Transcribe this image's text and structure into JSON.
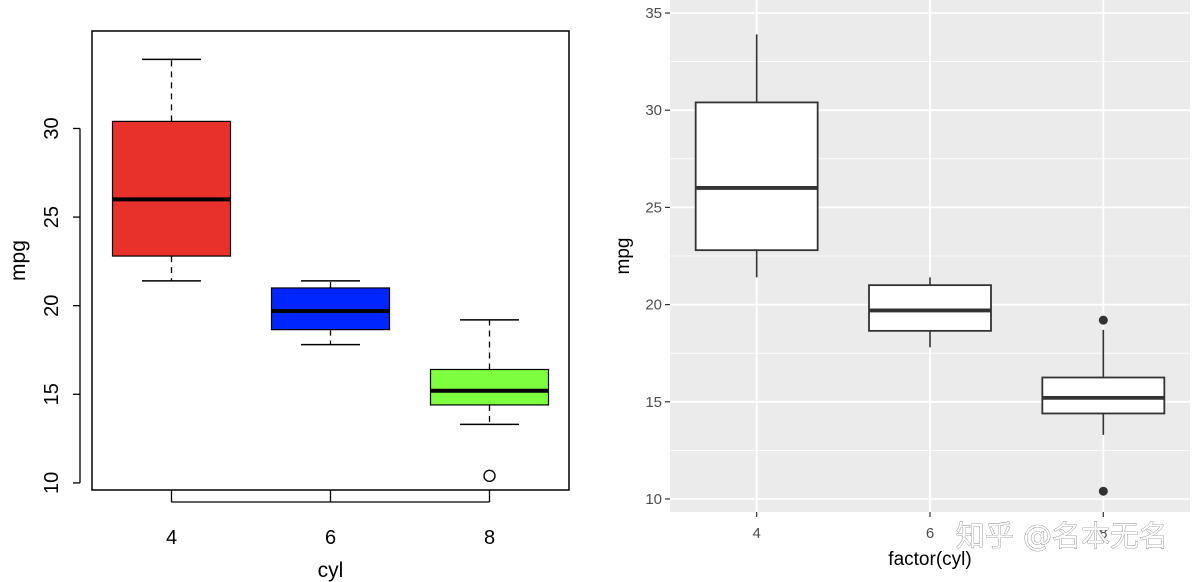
{
  "chart_data": [
    {
      "type": "box",
      "style": "base-r",
      "title": "",
      "xlabel": "cyl",
      "ylabel": "mpg",
      "ylim": [
        9.6,
        35.5
      ],
      "yticks": [
        10,
        15,
        20,
        25,
        30
      ],
      "categories": [
        "4",
        "6",
        "8"
      ],
      "boxes": [
        {
          "category": "4",
          "min": 21.4,
          "q1": 22.8,
          "median": 26.0,
          "q3": 30.4,
          "max": 33.9,
          "outliers": [],
          "color": "#e8312a"
        },
        {
          "category": "6",
          "min": 17.8,
          "q1": 18.65,
          "median": 19.7,
          "q3": 21.0,
          "max": 21.4,
          "outliers": [],
          "color": "#0026ff"
        },
        {
          "category": "8",
          "min": 13.3,
          "q1": 14.4,
          "median": 15.2,
          "q3": 16.4,
          "max": 19.2,
          "outliers": [
            10.4
          ],
          "color": "#7dff3f"
        }
      ]
    },
    {
      "type": "box",
      "style": "ggplot",
      "title": "",
      "xlabel": "factor(cyl)",
      "ylabel": "mpg",
      "ylim": [
        9.4,
        35.0
      ],
      "yticks": [
        10,
        15,
        20,
        25,
        30,
        35
      ],
      "categories": [
        "4",
        "6",
        "8"
      ],
      "boxes": [
        {
          "category": "4",
          "min": 21.4,
          "q1": 22.8,
          "median": 26.0,
          "q3": 30.4,
          "max": 33.9,
          "outliers": []
        },
        {
          "category": "6",
          "min": 17.8,
          "q1": 18.65,
          "median": 19.7,
          "q3": 21.0,
          "max": 21.4,
          "outliers": []
        },
        {
          "category": "8",
          "min": 13.3,
          "q1": 14.4,
          "median": 15.2,
          "q3": 16.25,
          "max": 18.7,
          "outliers": [
            19.2,
            10.4
          ]
        }
      ]
    }
  ],
  "watermark": "知乎 @名本无名"
}
